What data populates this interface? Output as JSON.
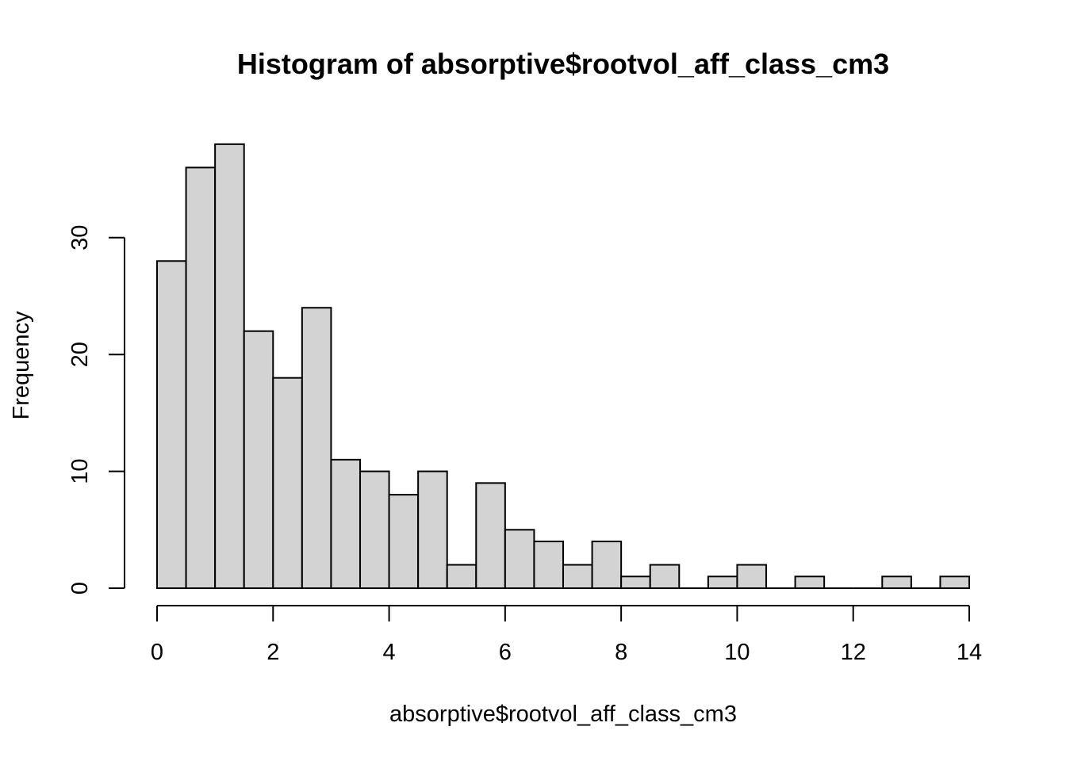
{
  "chart_data": {
    "type": "bar",
    "title": "Histogram of absorptive$rootvol_aff_class_cm3",
    "xlabel": "absorptive$rootvol_aff_class_cm3",
    "ylabel": "Frequency",
    "bin_width": 0.5,
    "bins_start": [
      0,
      0.5,
      1,
      1.5,
      2,
      2.5,
      3,
      3.5,
      4,
      4.5,
      5,
      5.5,
      6,
      6.5,
      7,
      7.5,
      8,
      8.5,
      9,
      9.5,
      10,
      10.5,
      11,
      11.5,
      12,
      12.5,
      13,
      13.5
    ],
    "values": [
      28,
      36,
      38,
      22,
      18,
      24,
      11,
      10,
      8,
      10,
      2,
      9,
      5,
      4,
      2,
      4,
      1,
      2,
      0,
      1,
      2,
      0,
      1,
      0,
      0,
      1,
      0,
      1
    ],
    "xlim": [
      0,
      14
    ],
    "ylim": [
      0,
      38
    ],
    "x_ticks": [
      0,
      2,
      4,
      6,
      8,
      10,
      12,
      14
    ],
    "y_ticks": [
      0,
      10,
      20,
      30
    ],
    "bar_fill": "#d3d3d3",
    "bar_stroke": "#000000",
    "grid": false
  }
}
